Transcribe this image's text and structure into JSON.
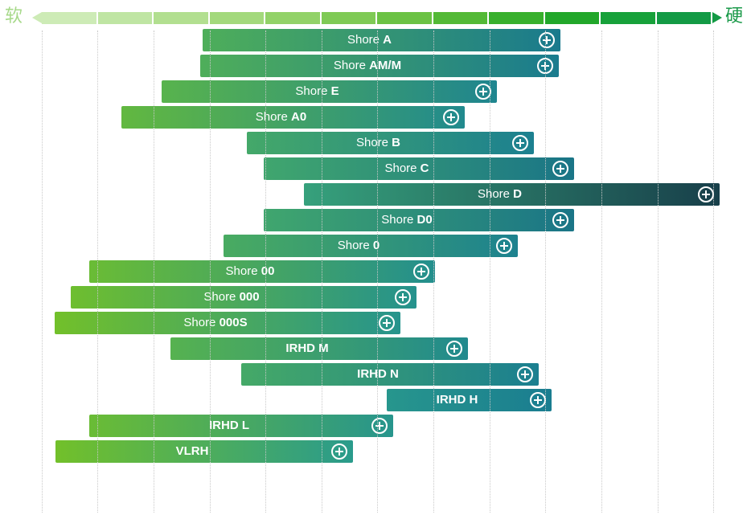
{
  "header": {
    "soft_label": "软",
    "hard_label": "硬",
    "scale_colors": [
      "#cdebb6",
      "#bfe5a3",
      "#b2df90",
      "#a3d97c",
      "#92d268",
      "#7fca55",
      "#6bc244",
      "#53b936",
      "#38b02d",
      "#22a72a",
      "#17a13a",
      "#139a45"
    ]
  },
  "colors": {
    "bar_start": "#72c02a",
    "bar_mid": "#2a9b8c",
    "bar_end": "#1a7d90",
    "bar_far_end": "#183f4a",
    "gridline": "#c9c9c9"
  },
  "expand_icon": "plus-circle-icon",
  "bars": [
    {
      "prefix": "Shore ",
      "code": "A"
    },
    {
      "prefix": "Shore ",
      "code": "AM/M"
    },
    {
      "prefix": "Shore ",
      "code": "E"
    },
    {
      "prefix": "Shore ",
      "code": "A0"
    },
    {
      "prefix": "Shore ",
      "code": "B"
    },
    {
      "prefix": "Shore ",
      "code": "C"
    },
    {
      "prefix": "Shore ",
      "code": "D"
    },
    {
      "prefix": "Shore ",
      "code": "D0"
    },
    {
      "prefix": "Shore ",
      "code": "0"
    },
    {
      "prefix": "Shore ",
      "code": "00"
    },
    {
      "prefix": "Shore ",
      "code": "000"
    },
    {
      "prefix": "Shore ",
      "code": "000S"
    },
    {
      "prefix": "",
      "code": "IRHD M"
    },
    {
      "prefix": "",
      "code": "IRHD N"
    },
    {
      "prefix": "",
      "code": "IRHD H"
    },
    {
      "prefix": "",
      "code": "IRHD L"
    },
    {
      "prefix": "",
      "code": "VLRH"
    }
  ]
}
